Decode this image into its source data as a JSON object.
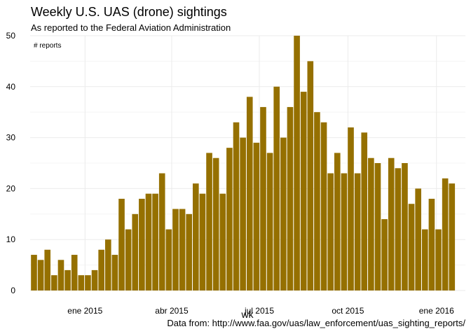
{
  "chart_data": {
    "type": "bar",
    "title": "Weekly U.S. UAS (drone) sightings",
    "subtitle": "As reported to the Federal Aviation Administration",
    "ylabel": "# reports",
    "xlabel": "wk",
    "caption": "Data from: http://www.faa.gov/uas/law_enforcement/uas_sighting_reports/",
    "ylim": [
      0,
      50
    ],
    "y_ticks": [
      0,
      10,
      20,
      30,
      40,
      50
    ],
    "x_ticks": [
      {
        "label": "ene 2015",
        "date": "2015-01-01"
      },
      {
        "label": "abr 2015",
        "date": "2015-04-01"
      },
      {
        "label": "jul 2015",
        "date": "2015-07-01"
      },
      {
        "label": "oct 2015",
        "date": "2015-10-01"
      },
      {
        "label": "ene 2016",
        "date": "2016-01-01"
      }
    ],
    "first_week": "2014-11-09",
    "x_range": [
      "2014-11-05",
      "2016-01-31"
    ],
    "color": "#957000",
    "grid": true,
    "values": [
      7,
      6,
      8,
      3,
      6,
      4,
      7,
      3,
      3,
      4,
      8,
      10,
      7,
      18,
      12,
      15,
      18,
      19,
      19,
      23,
      12,
      16,
      16,
      15,
      21,
      19,
      27,
      26,
      19,
      28,
      33,
      30,
      38,
      29,
      36,
      27,
      40,
      30,
      36,
      50,
      39,
      45,
      35,
      33,
      23,
      27,
      23,
      32,
      23,
      31,
      26,
      25,
      14,
      26,
      24,
      25,
      17,
      20,
      12,
      18,
      12,
      22,
      21
    ]
  }
}
